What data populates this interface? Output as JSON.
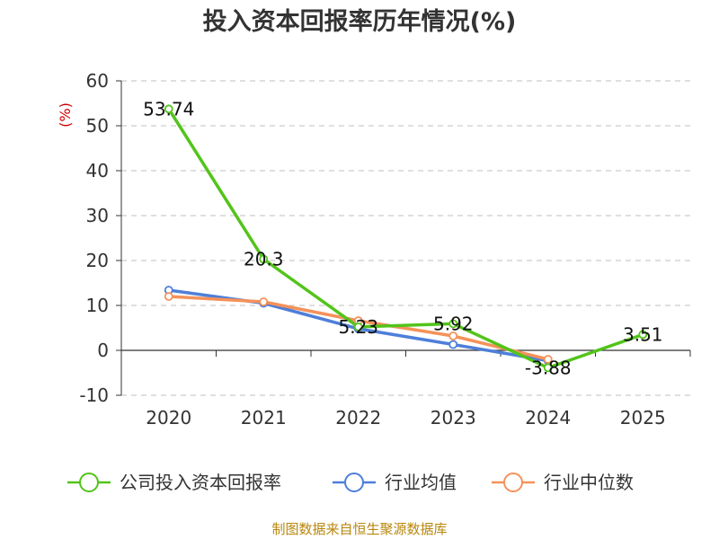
{
  "chart_data": {
    "type": "line",
    "title": "投入资本回报率历年情况(%)",
    "ylabel": "(%)",
    "xlabel": "",
    "categories": [
      "2020",
      "2021",
      "2022",
      "2023",
      "2024",
      "2025"
    ],
    "ylim": [
      -10,
      60
    ],
    "yticks": [
      "60",
      "50",
      "40",
      "30",
      "20",
      "10",
      "0",
      "-10"
    ],
    "grid": true,
    "legend_position": "bottom",
    "series": [
      {
        "name": "公司投入资本回报率",
        "color": "#52c41a",
        "values": [
          53.74,
          20.3,
          5.23,
          5.92,
          -3.88,
          3.51
        ],
        "labels": [
          "53.74",
          "20.3",
          "5.23",
          "5.92",
          "-3.88",
          "3.51"
        ]
      },
      {
        "name": "行业均值",
        "color": "#4e7fd9",
        "values": [
          13.4,
          10.5,
          4.8,
          1.3,
          -2.3,
          null
        ]
      },
      {
        "name": "行业中位数",
        "color": "#f4925a",
        "values": [
          12.0,
          10.8,
          6.6,
          3.2,
          -2.0,
          null
        ]
      }
    ],
    "source": "制图数据来自恒生聚源数据库"
  }
}
